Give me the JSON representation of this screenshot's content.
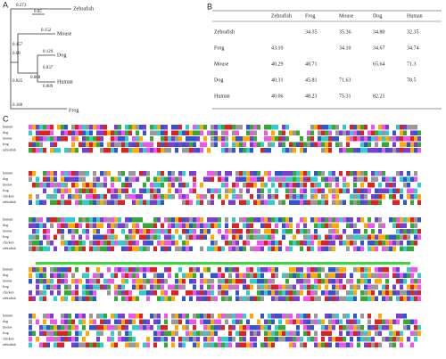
{
  "panel_a": {
    "label": "A",
    "taxa": [
      "Zebrafish",
      "Mouse",
      "Dog",
      "Human",
      "Frog"
    ],
    "branch_lengths": [
      "0.273",
      "0.05",
      "0.157",
      "0.08",
      "0.152",
      "0.129",
      "0.068",
      "0.037",
      "0.089",
      "0.025",
      "0.180"
    ]
  },
  "panel_b": {
    "label": "B",
    "header": [
      "Zebrafish",
      "Frog",
      "Mouse",
      "Dog",
      "Human"
    ],
    "rows": [
      {
        "name": "Zebrafish",
        "cells": [
          null,
          "34.35",
          "35.36",
          "34.80",
          "32.35"
        ]
      },
      {
        "name": "Frog",
        "cells": [
          "43.10",
          null,
          "34.10",
          "34.67",
          "34.74"
        ]
      },
      {
        "name": "Mouse",
        "cells": [
          "40.29",
          "48.71",
          null,
          "65.64",
          "71.3"
        ]
      },
      {
        "name": "Dog",
        "cells": [
          "40.31",
          "45.81",
          "71.63",
          null,
          "78.5"
        ]
      },
      {
        "name": "Human",
        "cells": [
          "40.06",
          "48.23",
          "75.31",
          "82.21",
          null
        ]
      }
    ]
  },
  "panel_c": {
    "label": "C",
    "blocks": [
      {
        "species": [
          "human",
          "dog",
          "mouse",
          "frog",
          "zebrafish"
        ]
      },
      {
        "species": [
          "human",
          "dog",
          "mouse",
          "frog",
          "chicken",
          "zebrafish"
        ]
      },
      {
        "species": [
          "human",
          "dog",
          "mouse",
          "frog",
          "chicken",
          "zebrafish"
        ]
      },
      {
        "species": [
          "human",
          "dog",
          "mouse",
          "frog",
          "chicken",
          "zebrafish"
        ]
      },
      {
        "species": [
          "human",
          "dog",
          "mouse",
          "frog",
          "chicken",
          "zebrafish"
        ]
      }
    ]
  }
}
